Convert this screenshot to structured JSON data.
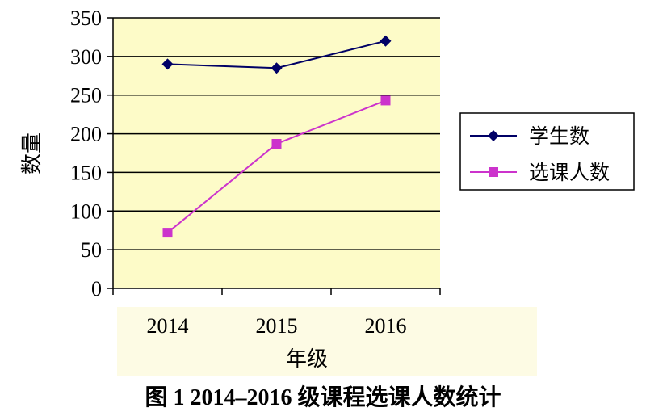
{
  "chart_data": {
    "type": "line",
    "categories": [
      "2014",
      "2015",
      "2016"
    ],
    "series": [
      {
        "name": "学生数",
        "values": [
          290,
          285,
          320
        ],
        "color": "#000066",
        "marker": "diamond"
      },
      {
        "name": "选课人数",
        "values": [
          72,
          187,
          243
        ],
        "color": "#cc33cc",
        "marker": "square"
      }
    ],
    "yticks": [
      0,
      50,
      100,
      150,
      200,
      250,
      300,
      350
    ],
    "ylim": [
      0,
      350
    ],
    "xlabel": "年级",
    "ylabel": "数量",
    "grid": true,
    "legend": "right",
    "plot_background": "#fdfbc8",
    "caption": "图 1  2014–2016 级课程选课人数统计"
  }
}
